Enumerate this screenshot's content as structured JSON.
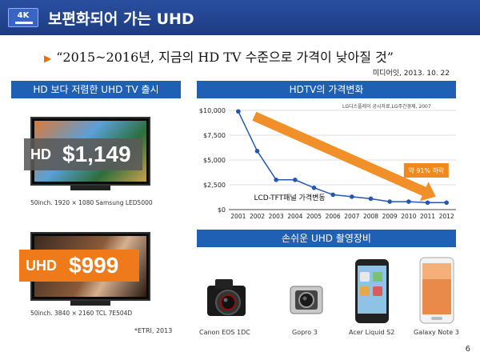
{
  "header": {
    "logo_text": "4K",
    "title": "보편화되어 가는 UHD"
  },
  "quote": {
    "text": "“2015~2016년, 지금의 HD TV 수준으로 가격이 낮아질 것”",
    "source": "미디어잇, 2013. 10. 22"
  },
  "left_panel": {
    "title": "HD 보다 저렴한 UHD TV 출시",
    "tv_hd": {
      "badge": "HD",
      "price": "$1,149",
      "caption": "50inch. 1920 × 1080 Samsung LED5000"
    },
    "tv_uhd": {
      "badge": "UHD",
      "price": "$999",
      "caption": "50inch. 3840 × 2160  TCL 7E504D"
    },
    "footnote": "*ETRI, 2013"
  },
  "chart_panel": {
    "title": "HDTV의 가격변화",
    "source": "LG디스플레이 공시자료,LG주간경제, 2007"
  },
  "chart_data": {
    "type": "line",
    "x": [
      "2001",
      "2002",
      "2003",
      "2004",
      "2005",
      "2006",
      "2007",
      "2008",
      "2009",
      "2010",
      "2011",
      "2012"
    ],
    "series": [
      {
        "name": "LCD-TFT패널 가격변동",
        "values": [
          9900,
          5900,
          3000,
          3000,
          2200,
          1500,
          1300,
          1100,
          800,
          800,
          700,
          700
        ]
      }
    ],
    "yticks": [
      "$0",
      "$2,500",
      "$5,000",
      "$7,500",
      "$10,000"
    ],
    "ylim": [
      0,
      10000
    ],
    "annotation": "약 91% 하락",
    "line_color": "#2457b0",
    "trend_color": "#f08a1e"
  },
  "gear_panel": {
    "title": "손쉬운 UHD 촬영장비",
    "items": [
      "Canon EOS 1DC",
      "Gopro 3",
      "Acer Liquid S2",
      "Galaxy Note 3"
    ]
  },
  "page_number": "6"
}
